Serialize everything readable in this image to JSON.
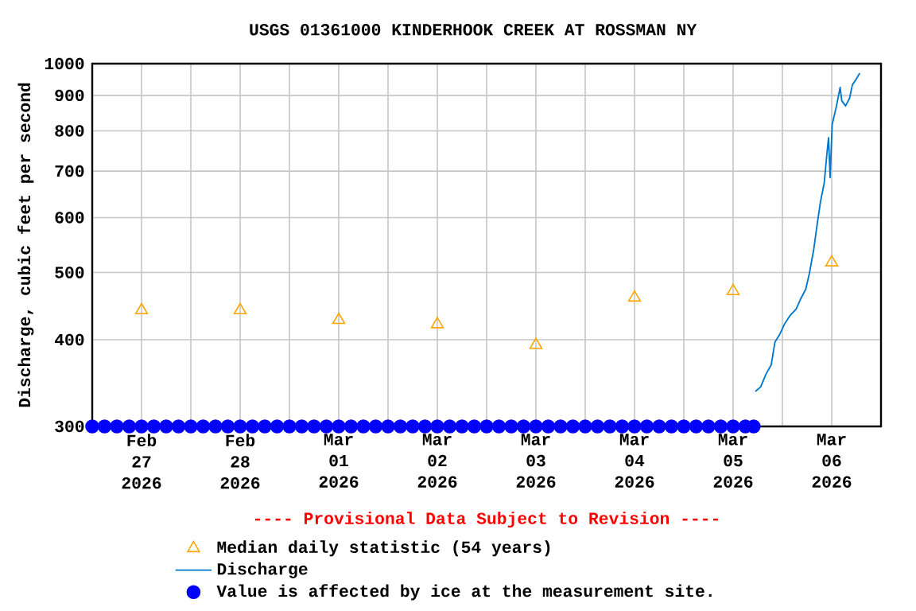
{
  "chart_data": {
    "type": "line",
    "title": "USGS 01361000 KINDERHOOK CREEK AT ROSSMAN NY",
    "ylabel": "Discharge, cubic feet per second",
    "log": "y",
    "grid": true,
    "legend": "bottom",
    "xlim": [
      "2026-02-27T00:00",
      "2026-03-07T00:00"
    ],
    "xticks": [
      {
        "value": "2026-02-27T00:00",
        "label": null
      },
      {
        "value": "2026-02-27T12:00",
        "label": "Feb 27 2026"
      },
      {
        "value": "2026-02-28T00:00",
        "label": null
      },
      {
        "value": "2026-02-28T12:00",
        "label": "Feb 28 2026"
      },
      {
        "value": "2026-03-01T00:00",
        "label": null
      },
      {
        "value": "2026-03-01T12:00",
        "label": "Mar 01 2026"
      },
      {
        "value": "2026-03-02T00:00",
        "label": null
      },
      {
        "value": "2026-03-02T12:00",
        "label": "Mar 02 2026"
      },
      {
        "value": "2026-03-03T00:00",
        "label": null
      },
      {
        "value": "2026-03-03T12:00",
        "label": "Mar 03 2026"
      },
      {
        "value": "2026-03-04T00:00",
        "label": null
      },
      {
        "value": "2026-03-04T12:00",
        "label": "Mar 04 2026"
      },
      {
        "value": "2026-03-05T00:00",
        "label": null
      },
      {
        "value": "2026-03-05T12:00",
        "label": "Mar 05 2026"
      },
      {
        "value": "2026-03-06T00:00",
        "label": null
      },
      {
        "value": "2026-03-06T12:00",
        "label": "Mar 06 2026"
      },
      {
        "value": "2026-03-07T00:00",
        "label": null
      }
    ],
    "ylim": [
      300,
      1000
    ],
    "yticks": [
      300,
      400,
      500,
      600,
      700,
      800,
      900,
      1000
    ],
    "annotations": [
      "---- Provisional Data Subject to Revision ----"
    ],
    "series": [
      {
        "name": "Median daily statistic (54 years)",
        "type": "scatter",
        "marker": "triangle",
        "color": "#ffa500",
        "x": [
          "2026-02-27T12:00",
          "2026-02-28T12:00",
          "2026-03-01T12:00",
          "2026-03-02T12:00",
          "2026-03-03T12:00",
          "2026-03-04T12:00",
          "2026-03-05T12:00",
          "2026-03-06T12:00"
        ],
        "values": [
          441,
          441,
          427,
          421,
          393,
          460,
          470,
          517
        ]
      },
      {
        "name": "Discharge",
        "color": "#0077cc",
        "x": [
          "2026-03-05T17:25",
          "2026-03-05T18:42",
          "2026-03-05T20:01",
          "2026-03-05T21:17",
          "2026-03-05T22:11",
          "2026-03-05T23:14",
          "2026-03-06T00:30",
          "2026-03-06T01:49",
          "2026-03-06T03:22",
          "2026-03-06T04:22",
          "2026-03-06T05:41",
          "2026-03-06T06:35",
          "2026-03-06T07:38",
          "2026-03-06T08:31",
          "2026-03-06T09:17",
          "2026-03-06T10:11",
          "2026-03-06T10:50",
          "2026-03-06T11:14",
          "2026-03-06T11:37",
          "2026-03-06T12:07",
          "2026-03-06T13:10",
          "2026-03-06T14:03",
          "2026-03-06T14:27",
          "2026-03-06T15:22",
          "2026-03-06T16:22",
          "2026-03-06T17:02",
          "2026-03-06T17:56",
          "2026-03-06T18:50"
        ],
        "values": [
          337,
          342,
          357,
          368,
          397,
          406,
          421,
          433,
          443,
          457,
          473,
          499,
          540,
          590,
          633,
          673,
          742,
          782,
          685,
          817,
          869,
          924,
          884,
          869,
          892,
          932,
          949,
          969
        ]
      },
      {
        "name": "Value is affected by ice at the measurement site.",
        "type": "scatter",
        "marker": "circle",
        "color": "#0000ff",
        "x": [
          "2026-02-27T00:00",
          "2026-02-27T03:00",
          "2026-02-27T06:00",
          "2026-02-27T09:00",
          "2026-02-27T12:00",
          "2026-02-27T15:00",
          "2026-02-27T18:00",
          "2026-02-27T21:00",
          "2026-02-28T00:00",
          "2026-02-28T03:00",
          "2026-02-28T06:00",
          "2026-02-28T09:00",
          "2026-02-28T12:00",
          "2026-02-28T15:00",
          "2026-02-28T18:00",
          "2026-02-28T21:00",
          "2026-03-01T00:00",
          "2026-03-01T03:00",
          "2026-03-01T06:00",
          "2026-03-01T09:00",
          "2026-03-01T12:00",
          "2026-03-01T15:00",
          "2026-03-01T18:00",
          "2026-03-01T21:00",
          "2026-03-02T00:00",
          "2026-03-02T03:00",
          "2026-03-02T06:00",
          "2026-03-02T09:00",
          "2026-03-02T12:00",
          "2026-03-02T15:00",
          "2026-03-02T18:00",
          "2026-03-02T21:00",
          "2026-03-03T00:00",
          "2026-03-03T03:00",
          "2026-03-03T06:00",
          "2026-03-03T09:00",
          "2026-03-03T12:00",
          "2026-03-03T15:00",
          "2026-03-03T18:00",
          "2026-03-03T21:00",
          "2026-03-04T00:00",
          "2026-03-04T03:00",
          "2026-03-04T06:00",
          "2026-03-04T09:00",
          "2026-03-04T12:00",
          "2026-03-04T15:00",
          "2026-03-04T18:00",
          "2026-03-04T21:00",
          "2026-03-05T00:00",
          "2026-03-05T03:00",
          "2026-03-05T06:00",
          "2026-03-05T09:00",
          "2026-03-05T12:00",
          "2026-03-05T15:00",
          "2026-03-05T17:00"
        ],
        "values": [
          300,
          300,
          300,
          300,
          300,
          300,
          300,
          300,
          300,
          300,
          300,
          300,
          300,
          300,
          300,
          300,
          300,
          300,
          300,
          300,
          300,
          300,
          300,
          300,
          300,
          300,
          300,
          300,
          300,
          300,
          300,
          300,
          300,
          300,
          300,
          300,
          300,
          300,
          300,
          300,
          300,
          300,
          300,
          300,
          300,
          300,
          300,
          300,
          300,
          300,
          300,
          300,
          300,
          300,
          300
        ]
      }
    ]
  }
}
